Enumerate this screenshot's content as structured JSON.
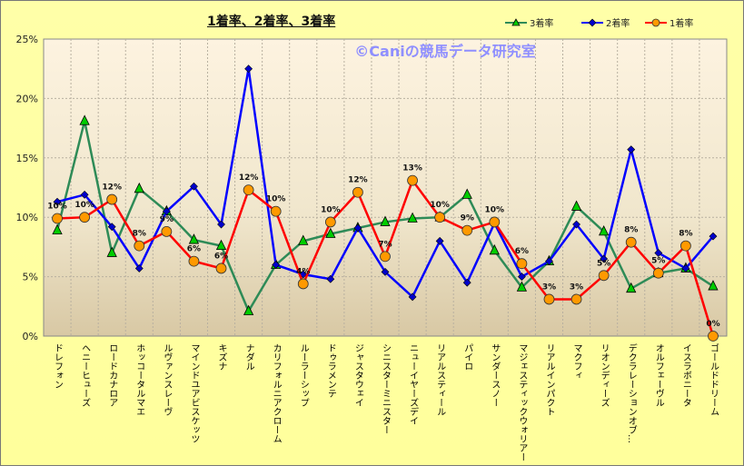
{
  "chart_data": {
    "type": "line",
    "title": "1着率、2着率、3着率",
    "watermark": "©Caniの競馬データ研究室",
    "ylim": [
      0,
      25
    ],
    "yticks": [
      "0%",
      "5%",
      "10%",
      "15%",
      "20%",
      "25%"
    ],
    "grid": true,
    "legend_placement": "top-right",
    "categories": [
      "ドレフォン",
      "ヘニーヒューズ",
      "ロードカナロア",
      "ホッコータルマエ",
      "ルヴァンスレーヴ",
      "マインドユアビスケッツ",
      "キズナ",
      "ナダル",
      "カリフォルニアクローム",
      "ルーラーシップ",
      "ドゥラメンテ",
      "ジャスタウェイ",
      "シニスターミニスター",
      "ニューイヤーズデイ",
      "リアルスティール",
      "パイロ",
      "サンダースノー",
      "マジェスティックウォリアー",
      "リアルインパクト",
      "マクフィ",
      "リオンディーズ",
      "デクラレーションオブ…",
      "オルフェーヴル",
      "イスラボニータ",
      "ゴールドドリーム"
    ],
    "series": [
      {
        "name": "3着率",
        "color": "#2e8b57",
        "marker": "triangle",
        "marker_color": "#00cc00",
        "values": [
          8.9,
          18.1,
          7.0,
          12.4,
          10.5,
          8.1,
          7.6,
          2.1,
          6.0,
          8.0,
          8.6,
          9.1,
          9.6,
          9.9,
          10.0,
          11.9,
          7.2,
          4.1,
          6.3,
          10.9,
          8.8,
          4.0,
          5.3,
          5.7,
          4.2
        ]
      },
      {
        "name": "2着率",
        "color": "#0000ff",
        "marker": "diamond",
        "marker_color": "#0000cc",
        "values": [
          11.3,
          11.9,
          9.2,
          5.7,
          10.5,
          12.6,
          9.4,
          22.5,
          6.0,
          5.2,
          4.8,
          9.1,
          5.4,
          3.3,
          8.0,
          4.5,
          9.5,
          5.0,
          6.3,
          9.4,
          6.5,
          15.7,
          7.0,
          5.7,
          8.4
        ]
      },
      {
        "name": "1着率",
        "color": "#ff0000",
        "marker": "circle",
        "marker_color": "#ff9900",
        "values": [
          9.9,
          10.0,
          11.5,
          7.6,
          8.8,
          6.3,
          5.7,
          12.3,
          10.5,
          4.4,
          9.6,
          12.1,
          6.7,
          13.1,
          10.0,
          8.9,
          9.6,
          6.1,
          3.1,
          3.1,
          5.1,
          7.9,
          5.3,
          7.6,
          0.0
        ],
        "data_labels": [
          "10%",
          "10%",
          "12%",
          "8%",
          "9%",
          "6%",
          "6%",
          "12%",
          "10%",
          "4%",
          "10%",
          "12%",
          "7%",
          "13%",
          "10%",
          "9%",
          "10%",
          "6%",
          "3%",
          "3%",
          "5%",
          "8%",
          "5%",
          "8%",
          "0%"
        ]
      }
    ]
  }
}
